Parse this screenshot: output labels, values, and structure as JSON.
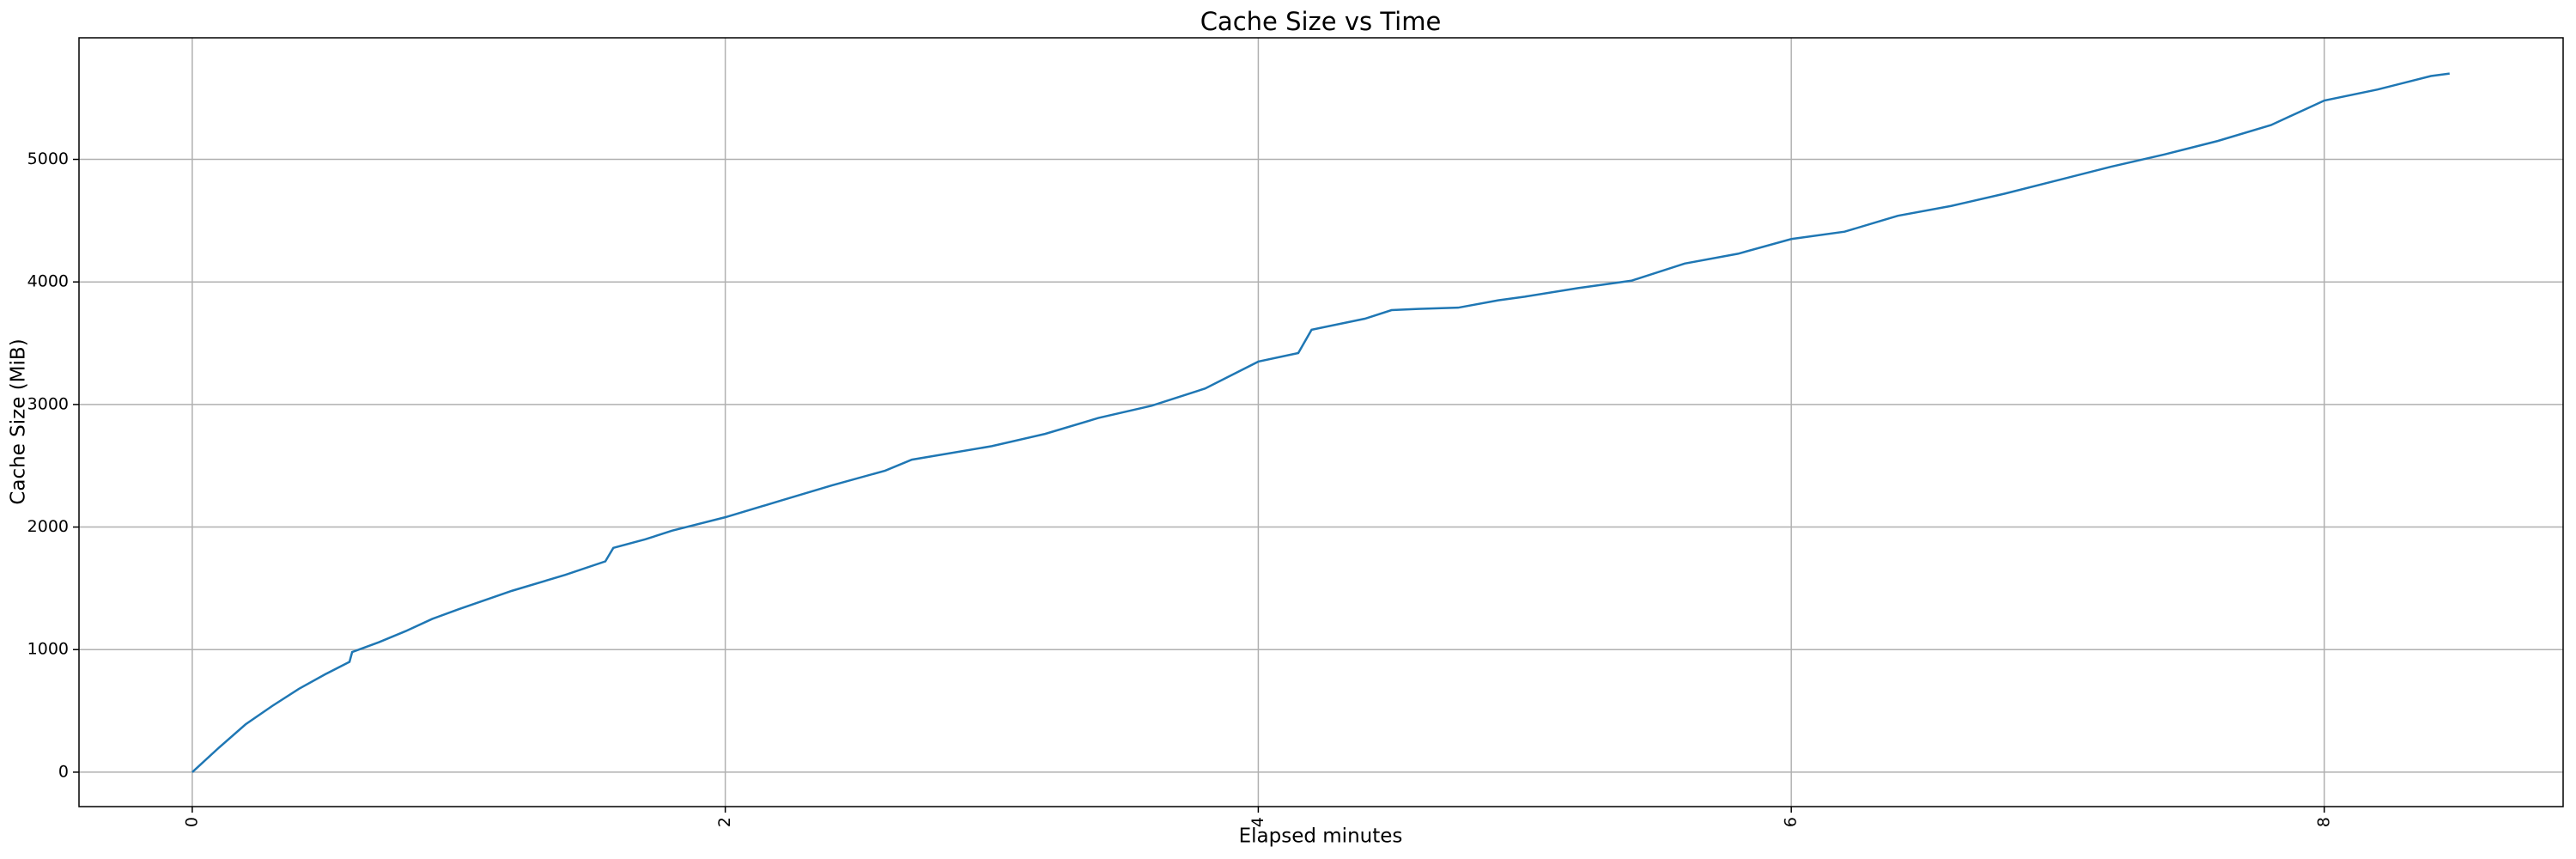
{
  "chart_data": {
    "type": "line",
    "title": "Cache Size vs Time",
    "xlabel": "Elapsed minutes",
    "ylabel": "Cache Size (MiB)",
    "x": [
      0,
      0.1,
      0.2,
      0.3,
      0.4,
      0.5,
      0.59,
      0.6,
      0.7,
      0.8,
      0.9,
      1.0,
      1.2,
      1.4,
      1.55,
      1.58,
      1.7,
      1.8,
      2.0,
      2.2,
      2.4,
      2.6,
      2.7,
      3.0,
      3.2,
      3.4,
      3.6,
      3.8,
      4.0,
      4.15,
      4.2,
      4.4,
      4.5,
      4.6,
      4.75,
      4.9,
      5.0,
      5.2,
      5.4,
      5.6,
      5.8,
      6.0,
      6.2,
      6.4,
      6.6,
      6.8,
      7.0,
      7.2,
      7.4,
      7.6,
      7.8,
      8.0,
      8.2,
      8.4,
      8.47
    ],
    "series": [
      {
        "color": "#1f77b4",
        "values": [
          0,
          200,
          390,
          540,
          680,
          800,
          900,
          980,
          1060,
          1150,
          1250,
          1330,
          1480,
          1610,
          1720,
          1830,
          1900,
          1970,
          2080,
          2210,
          2340,
          2460,
          2550,
          2660,
          2760,
          2890,
          2990,
          3130,
          3350,
          3420,
          3610,
          3700,
          3770,
          3780,
          3790,
          3850,
          3880,
          3950,
          4010,
          4150,
          4230,
          4350,
          4410,
          4540,
          4620,
          4720,
          4830,
          4940,
          5040,
          5150,
          5280,
          5480,
          5570,
          5680,
          5700
        ]
      }
    ],
    "xlim": [
      -0.425,
      8.896
    ],
    "xticks": [
      0,
      2,
      4,
      6,
      8
    ],
    "ylim": [
      -281,
      5992
    ],
    "yticks": [
      0,
      1000,
      2000,
      3000,
      4000,
      5000
    ],
    "grid": true
  }
}
